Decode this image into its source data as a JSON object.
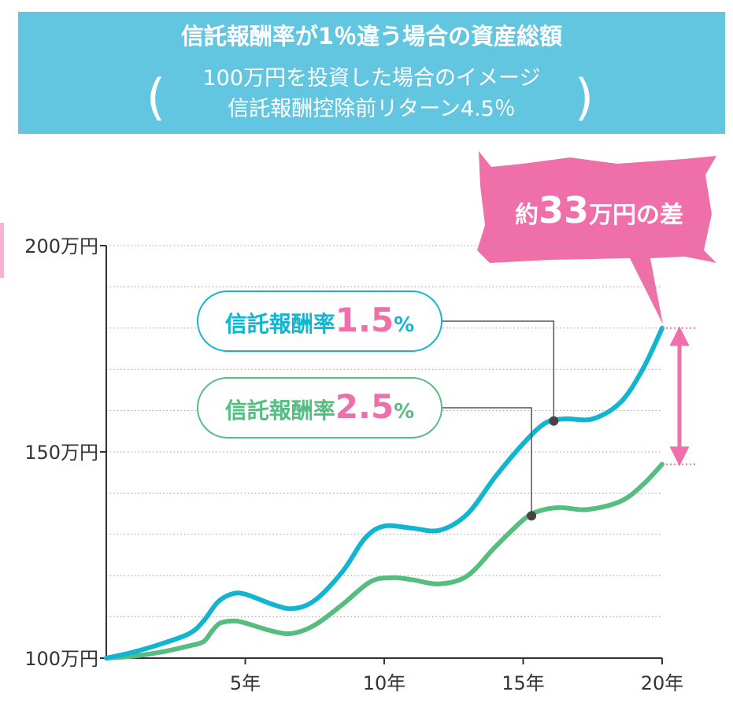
{
  "header": {
    "title": "信託報酬率が1％違う場合の資産総額",
    "paren_left": "(",
    "paren_right": ")",
    "subtitle_line1": "100万円を投資した場合のイメージ",
    "subtitle_line2": "信託報酬控除前リターン4.5％"
  },
  "callout": {
    "prefix": "約",
    "number": "33",
    "suffix": "万円の差"
  },
  "colors": {
    "header_bg": "#63c6e1",
    "callout_bg": "#ef6fa9",
    "series_blue": "#11b5d0",
    "series_green": "#55bd80",
    "accent_pink": "#ef6fa9",
    "axis": "#333333",
    "grid": "#9e9e9e"
  },
  "chart_data": {
    "type": "line",
    "xlabel": "",
    "ylabel": "",
    "xlim": [
      0,
      20
    ],
    "ylim": [
      100,
      200
    ],
    "grid": true,
    "x_ticks": [
      5,
      10,
      15,
      20
    ],
    "x_tick_labels": [
      "5年",
      "10年",
      "15年",
      "20年"
    ],
    "y_ticks": [
      100,
      150,
      200
    ],
    "y_tick_labels": [
      "100万円",
      "150万円",
      "200万円"
    ],
    "series": [
      {
        "name": "信託報酬率1.5%",
        "label_text": "信託報酬率",
        "label_value": "1.5",
        "label_unit": "%",
        "color": "#11b5d0",
        "x": [
          0,
          1,
          2,
          3,
          3.5,
          4,
          4.5,
          5,
          6,
          6.7,
          7.5,
          8.5,
          9.3,
          10,
          11,
          12,
          13,
          14,
          15,
          15.8,
          16.5,
          17.5,
          18.5,
          19.3,
          20
        ],
        "y": [
          100,
          101.5,
          103.5,
          106,
          109,
          113.5,
          115.5,
          115.5,
          113,
          112,
          114,
          121,
          129,
          132,
          131.5,
          131,
          135,
          144,
          152,
          157,
          158,
          158,
          162,
          170,
          180
        ]
      },
      {
        "name": "信託報酬率2.5%",
        "label_text": "信託報酬率",
        "label_value": "2.5",
        "label_unit": "%",
        "color": "#55bd80",
        "x": [
          0,
          1,
          2,
          3,
          3.5,
          3.8,
          4.1,
          4.6,
          5,
          6,
          6.7,
          7.5,
          8.5,
          9.5,
          10.3,
          11,
          12,
          13,
          14,
          15,
          15.5,
          16.3,
          17.3,
          18.5,
          19.3,
          20
        ],
        "y": [
          100,
          100.5,
          101.5,
          103,
          104,
          106.5,
          108.5,
          109,
          108.5,
          106.5,
          106,
          108,
          113,
          118.5,
          119.5,
          119,
          118,
          120,
          127,
          133.5,
          135.5,
          136.5,
          136,
          138,
          142,
          147
        ]
      }
    ],
    "markers": [
      {
        "series": "信託報酬率1.5%",
        "x": 16.1,
        "y": 157.5
      },
      {
        "series": "信託報酬率2.5%",
        "x": 15.3,
        "y": 134.5
      }
    ],
    "difference": {
      "x": 20,
      "from": 147,
      "to": 180,
      "label": "約33万円の差"
    }
  }
}
